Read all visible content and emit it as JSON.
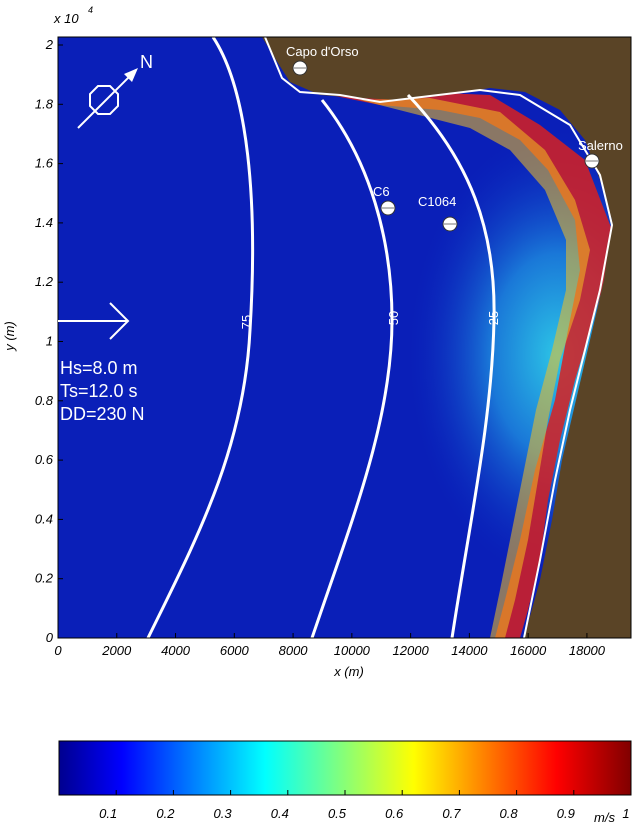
{
  "map": {
    "exponent_label": "x 10",
    "exponent_power": "4",
    "x_axis_label": "x (m)",
    "y_axis_label": "y (m)",
    "north_label": "N",
    "x_ticks": [
      "0",
      "2000",
      "4000",
      "6000",
      "8000",
      "10000",
      "12000",
      "14000",
      "16000",
      "18000"
    ],
    "y_ticks": [
      "0",
      "0.2",
      "0.4",
      "0.6",
      "0.8",
      "1",
      "1.2",
      "1.4",
      "1.6",
      "1.8",
      "2"
    ],
    "places": [
      {
        "name": "Capo d'Orso"
      },
      {
        "name": "Salerno"
      },
      {
        "name": "C6"
      },
      {
        "name": "C1064"
      }
    ],
    "contours": [
      "75",
      "50",
      "25"
    ],
    "wave": {
      "hs": "Hs=8.0 m",
      "ts": "Ts=12.0 s",
      "dd": "DD=230 N"
    },
    "colors": {
      "sea_deep": "#0a1fb8",
      "land": "#5a4426",
      "contour": "#ffffff"
    }
  },
  "colorbar": {
    "ticks": [
      "0.1",
      "0.2",
      "0.3",
      "0.4",
      "0.5",
      "0.6",
      "0.7",
      "0.8",
      "0.9",
      "1"
    ],
    "unit": "m/s",
    "range": [
      0,
      1
    ],
    "colormap": "jet"
  }
}
